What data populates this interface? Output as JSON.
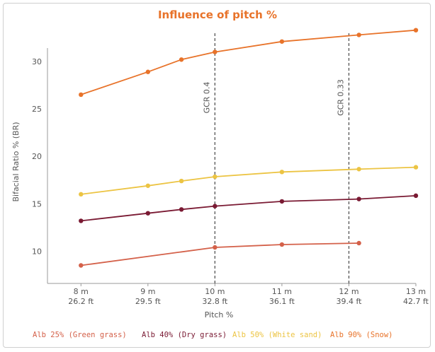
{
  "chart_data": {
    "type": "line",
    "title": "Influence of pitch %",
    "xlabel": "Pitch %",
    "ylabel": "Bifacial Ratio % (BR)",
    "x_ticks": [
      {
        "x": 8,
        "m": "8 m",
        "ft": "26.2 ft"
      },
      {
        "x": 9,
        "m": "9 m",
        "ft": "29.5 ft"
      },
      {
        "x": 10,
        "m": "10 m",
        "ft": "32.8 ft"
      },
      {
        "x": 11,
        "m": "11 m",
        "ft": "36.1 ft"
      },
      {
        "x": 12,
        "m": "12 m",
        "ft": "39.4 ft"
      },
      {
        "x": 13,
        "m": "13 m",
        "ft": "42.7 ft"
      }
    ],
    "xlim": [
      7.5,
      13
    ],
    "y_ticks": [
      10,
      15,
      20,
      25,
      30
    ],
    "ylim": [
      6.6,
      33.5
    ],
    "grid": false,
    "legend_position": "bottom",
    "annotations": [
      {
        "label": "GCR 0.4",
        "x": 10
      },
      {
        "label": "GCR 0.33",
        "x": 12
      }
    ],
    "series": [
      {
        "name": "Alb 25% (Green grass)",
        "color": "#d4614a",
        "x": [
          8,
          10,
          11,
          12.15
        ],
        "y": [
          8.5,
          10.4,
          10.7,
          10.85
        ]
      },
      {
        "name": "Alb 40% (Dry grass)",
        "color": "#7a1a33",
        "x": [
          8,
          9,
          9.5,
          10,
          11,
          12.15,
          13
        ],
        "y": [
          13.2,
          14.0,
          14.4,
          14.75,
          15.25,
          15.5,
          15.85
        ]
      },
      {
        "name": "Alb 50% (White sand)",
        "color": "#ecc443",
        "x": [
          8,
          9,
          9.5,
          10,
          11,
          12.15,
          13
        ],
        "y": [
          16.0,
          16.9,
          17.4,
          17.85,
          18.35,
          18.65,
          18.85
        ]
      },
      {
        "name": "Alb 90% (Snow)",
        "color": "#e8732a",
        "x": [
          8,
          9,
          9.5,
          10,
          11,
          12.15,
          13
        ],
        "y": [
          26.5,
          28.9,
          30.2,
          31.0,
          32.1,
          32.8,
          33.3
        ]
      }
    ]
  }
}
